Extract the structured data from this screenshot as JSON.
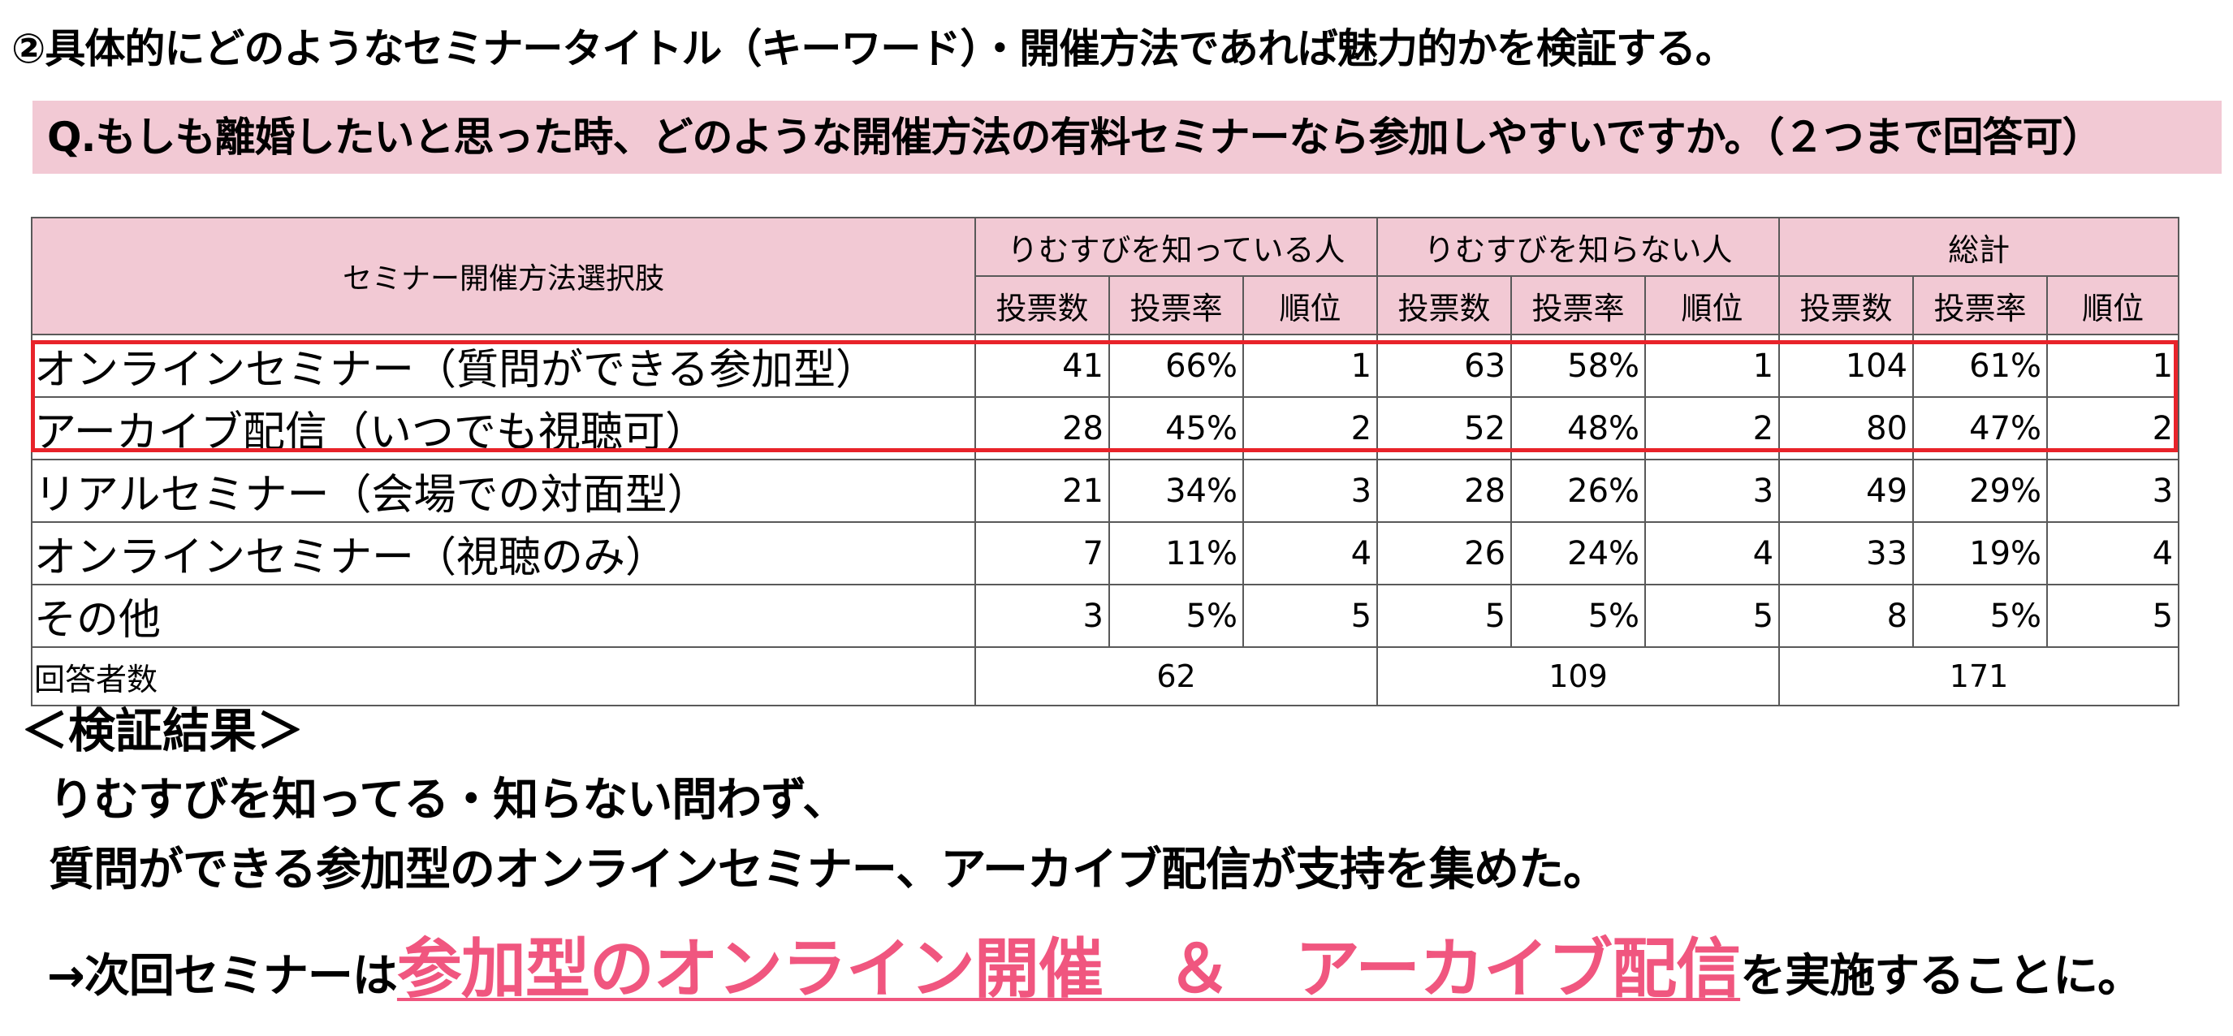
{
  "heading": "②具体的にどのようなセミナータイトル（キーワード）・開催方法であれば魅力的かを検証する。",
  "question": "Q.もしも離婚したいと思った時、どのような開催方法の有料セミナーなら参加しやすいですか。（２つまで回答可）",
  "table": {
    "corner_header": "セミナー開催方法選択肢",
    "groups": [
      "りむすびを知っている人",
      "りむすびを知らない人",
      "総計"
    ],
    "sub_headers": [
      "投票数",
      "投票率",
      "順位"
    ],
    "rows": [
      {
        "label": "オンラインセミナー（質問ができる参加型）",
        "cells": [
          "41",
          "66%",
          "1",
          "63",
          "58%",
          "1",
          "104",
          "61%",
          "1"
        ]
      },
      {
        "label": "アーカイブ配信（いつでも視聴可）",
        "cells": [
          "28",
          "45%",
          "2",
          "52",
          "48%",
          "2",
          "80",
          "47%",
          "2"
        ]
      },
      {
        "label": "リアルセミナー（会場での対面型）",
        "cells": [
          "21",
          "34%",
          "3",
          "28",
          "26%",
          "3",
          "49",
          "29%",
          "3"
        ]
      },
      {
        "label": "オンラインセミナー（視聴のみ）",
        "cells": [
          "7",
          "11%",
          "4",
          "26",
          "24%",
          "4",
          "33",
          "19%",
          "4"
        ]
      },
      {
        "label": "その他",
        "cells": [
          "3",
          "5%",
          "5",
          "5",
          "5%",
          "5",
          "8",
          "5%",
          "5"
        ]
      }
    ],
    "total_row": {
      "label": "回答者数",
      "values": [
        "62",
        "109",
        "171"
      ]
    },
    "highlight_color": "#e8232a",
    "header_bg": "#f2c9d4"
  },
  "result": {
    "title": "＜検証結果＞",
    "line1": "りむすびを知ってる・知らない問わず、",
    "line2": "質問ができる参加型のオンラインセミナー、アーカイブ配信が支持を集めた。",
    "conclusion_prefix": "→次回セミナーは",
    "conclusion_emphasis": "参加型のオンライン開催　＆　アーカイブ配信",
    "conclusion_suffix": "を実施することに。",
    "emphasis_color": "#f0567f"
  }
}
